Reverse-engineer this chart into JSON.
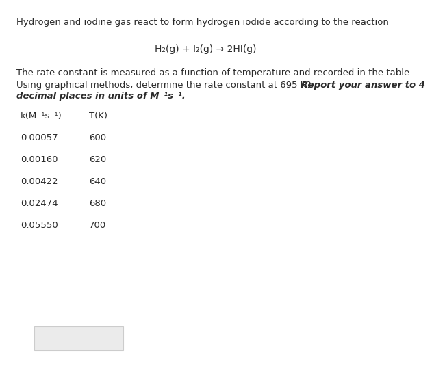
{
  "background_color": "#ffffff",
  "line1": "Hydrogen and iodine gas react to form hydrogen iodide according to the reaction",
  "equation": "H₂(g) + I₂(g) → 2HI(g)",
  "line3a": "The rate constant is measured as a function of temperature and recorded in the table.",
  "line3b_normal": "Using graphical methods, determine the rate constant at 695 K?  ",
  "line3b_bold_italic": "Report your answer to 4",
  "line3c_bold_italic": "decimal places in units of M⁻¹s⁻¹.",
  "col1_header": "k(M⁻¹s⁻¹)",
  "col2_header": "T(K)",
  "table_data": [
    [
      "0.00057",
      "600"
    ],
    [
      "0.00160",
      "620"
    ],
    [
      "0.00422",
      "640"
    ],
    [
      "0.02474",
      "680"
    ],
    [
      "0.05550",
      "700"
    ]
  ],
  "font_size": 9.5,
  "text_color": "#2a2a2a",
  "eq_color": "#2a2a2a"
}
